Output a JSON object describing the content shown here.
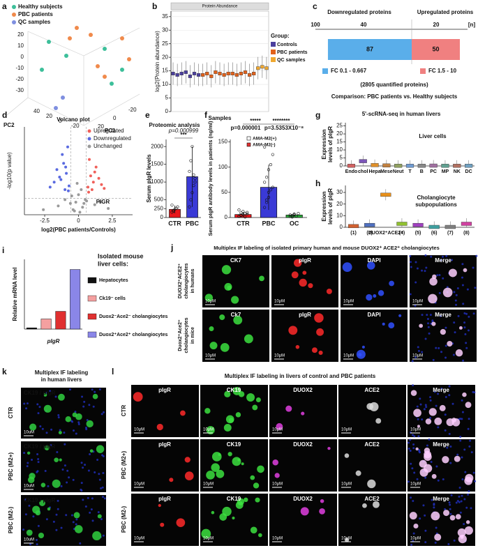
{
  "panels": {
    "a": {
      "letter": "a",
      "legend": [
        "Healthy subjects",
        "PBC patients",
        "QC samples"
      ],
      "colors": [
        "#3dbf9a",
        "#f08a4b",
        "#7f8fe0"
      ],
      "axis_labels": [
        "PC1",
        "PC2"
      ],
      "z_ticks": [
        "20",
        "10",
        "0",
        "-10",
        "-20",
        "-30"
      ],
      "pc1_ticks": [
        "20",
        "0",
        "-20"
      ],
      "pc2_ticks": [
        "40",
        "20",
        "0",
        "-20"
      ]
    },
    "j": {
      "letter": "j",
      "title": "Multiplex IF labeling of isolated primary human and mouse DUOX2⁺ ACE2⁺ cholangiocytes",
      "rows": [
        [
          "DUOX2⁺ACE2⁺",
          "cholangiocytes",
          "in humans"
        ],
        [
          "Duox2⁺Ace2⁺",
          "cholangiocytes",
          "in mice"
        ]
      ],
      "columns": [
        [
          "CK7",
          "pIgR",
          "DAPI",
          "Merge"
        ],
        [
          "Ck7",
          "pIgR",
          "DAPI",
          "Merge"
        ]
      ],
      "scale": "10μM"
    },
    "k": {
      "letter": "k",
      "title": [
        "Multiplex IF labeling",
        "in human livers"
      ],
      "rows": [
        "CTR",
        "PBC (M2+)",
        "PBC (M2-)"
      ],
      "stain": [
        "CK19",
        "/ pIgR"
      ],
      "scale": "10uM"
    },
    "l": {
      "letter": "l",
      "title": "Multiplex IF labeling in livers of control and PBC patients",
      "rows": [
        "CTR",
        "PBC (M2+)",
        "PBC (M2-)"
      ],
      "columns": [
        "pIgR",
        "CK19",
        "DUOX2",
        "ACE2",
        "Merge"
      ],
      "scale": "10μM"
    }
  },
  "chart_data": [
    {
      "panel": "b",
      "type": "box",
      "title": "Protein Abundance",
      "ylabel": "log2(Protein abundance)",
      "xlabel": "Samples",
      "legend_title": "Group:",
      "series": [
        {
          "name": "Controls",
          "color": "#4b3f9e",
          "values": [
            14,
            13.5,
            14,
            14.5,
            13,
            14,
            13.5
          ]
        },
        {
          "name": "PBC patients",
          "color": "#e2621b",
          "values": [
            13.5,
            14,
            13,
            14.5,
            14,
            13.5,
            14,
            14,
            13.5,
            14,
            14.5,
            13.5,
            14
          ]
        },
        {
          "name": "QC samples",
          "color": "#f0a830",
          "values": [
            16,
            16.5,
            16
          ]
        }
      ],
      "ylim": [
        0,
        37
      ],
      "yticks": [
        0,
        5,
        10,
        15,
        20,
        25,
        30,
        35
      ]
    },
    {
      "panel": "c",
      "type": "diverging_bar",
      "header": [
        "Downregulated proteins",
        "Upregulated proteins"
      ],
      "tick_labels": [
        "100",
        "40",
        "20",
        "[n]"
      ],
      "series": [
        {
          "name": "FC 0.1 - 0.667",
          "color": "#5aaeea",
          "values": [
            87
          ]
        },
        {
          "name": "FC 1.5 - 10",
          "color": "#f08080",
          "values": [
            50
          ]
        }
      ],
      "xlim": [
        0,
        100
      ],
      "notes": [
        "(2805 quantified proteins)",
        "Comparison: PBC patients vs. Healthy subjects"
      ]
    },
    {
      "panel": "d",
      "type": "scatter",
      "title": "Volcano plot",
      "xlabel": "log2(PBC patients/Controls)",
      "ylabel": "-log10(p value)",
      "annotation": "PIGR",
      "xlim": [
        -4,
        4
      ],
      "ylim": [
        0,
        7
      ],
      "xticks": [
        -2.5,
        0,
        2.5
      ],
      "series": [
        {
          "name": "Upregulated",
          "color": "#f0605a",
          "x": [
            0.7,
            0.9,
            1.1,
            1.3,
            0.8,
            1.5,
            1.0,
            1.7,
            1.2,
            0.75,
            1.9
          ],
          "y": [
            2.2,
            3.1,
            2.6,
            3.8,
            4.4,
            2.9,
            2.0,
            2.4,
            3.4,
            1.8,
            2.1
          ]
        },
        {
          "name": "Downregulated",
          "color": "#5a6ae0",
          "x": [
            -0.7,
            -0.9,
            -1.1,
            -1.3,
            -0.8,
            -1.6,
            -1.0,
            -1.8,
            -1.2,
            -0.75,
            -2.1,
            -1.4,
            -0.95
          ],
          "y": [
            2.3,
            3.3,
            4.1,
            2.8,
            5.4,
            3.6,
            2.0,
            2.6,
            4.8,
            1.9,
            2.2,
            3.0,
            3.8
          ]
        },
        {
          "name": "Unchanged",
          "color": "#9a9a9a",
          "x": [
            -0.4,
            0.3,
            -0.2,
            0.1,
            0.5,
            -0.5,
            0.2,
            -0.1,
            0.4,
            -0.3,
            1.2,
            -1.5,
            2.2,
            -2.6,
            0.6,
            -0.6,
            0.0,
            1.6,
            -1.0
          ],
          "y": [
            0.4,
            0.6,
            1.0,
            0.2,
            1.2,
            1.5,
            2.0,
            2.5,
            0.9,
            0.3,
            0.8,
            0.7,
            0.5,
            0.4,
            1.1,
            0.9,
            1.6,
            1.0,
            1.2
          ]
        }
      ]
    },
    {
      "panel": "e",
      "type": "bar_points",
      "title": "Proteomic analysis",
      "ylabel": "Serum pIgR levels",
      "categories": [
        "CTR",
        "PBC"
      ],
      "values": [
        230,
        1150
      ],
      "errors": [
        110,
        850
      ],
      "colors": [
        "#e8161b",
        "#3a3ad6"
      ],
      "points": [
        [
          150,
          180,
          230,
          260,
          300,
          350,
          200
        ],
        [
          300,
          500,
          700,
          900,
          1100,
          1300,
          1600,
          2000,
          1200,
          1000
        ]
      ],
      "ylim": [
        0,
        2200
      ],
      "yticks": [
        0,
        250,
        500,
        1000,
        1500,
        2000
      ],
      "annotations": [
        "***",
        "p=0.000999"
      ]
    },
    {
      "panel": "f",
      "type": "bar_points",
      "ylabel": "Serum pIgR antibody levels in patients (ng/ml)",
      "categories": [
        "CTR",
        "PBC",
        "OC"
      ],
      "values": [
        6,
        60,
        5
      ],
      "errors": [
        5,
        45,
        3
      ],
      "colors": [
        "#e8161b",
        "#3a3ad6",
        "#2aaa3a"
      ],
      "points": [
        [
          2,
          4,
          6,
          8,
          10,
          3,
          5,
          12,
          1,
          7,
          15,
          9
        ],
        [
          20,
          30,
          40,
          55,
          60,
          70,
          80,
          95,
          105,
          125,
          140,
          35,
          50
        ],
        [
          2,
          4,
          6,
          3,
          8,
          5,
          1,
          7
        ]
      ],
      "ylim": [
        0,
        155
      ],
      "yticks": [
        0,
        50,
        100,
        150
      ],
      "annotations": [
        "*****",
        "********",
        "p=0.000001",
        "p=3.5353X10⁻⁸"
      ],
      "legend": [
        "AMA-M2(+)",
        "AMA-M2(-)"
      ]
    },
    {
      "panel": "g",
      "type": "box",
      "title": "5'-scRNA-seq in human livers",
      "subtitle": "Liver cells",
      "ylabel": [
        "Expression",
        "levels of pIgR"
      ],
      "categories": [
        "Endo",
        "chol",
        "Hepa",
        "Mese",
        "Neut",
        "T",
        "B",
        "PC",
        "MP",
        "NK",
        "DC"
      ],
      "values": [
        0.1,
        3,
        0.5,
        0.3,
        0.1,
        0.1,
        0.1,
        0.2,
        0.1,
        0.1,
        0.1
      ],
      "colors": [
        "#d06060",
        "#7b55b8",
        "#e0902a",
        "#c08040",
        "#90a060",
        "#6f9ad0",
        "#888888",
        "#a070a0",
        "#60a090",
        "#b07060",
        "#70a0c0"
      ],
      "ylim": [
        0,
        27
      ],
      "yticks": [
        0,
        5,
        10,
        15,
        20,
        25
      ]
    },
    {
      "panel": "h",
      "type": "box",
      "subtitle": [
        "Cholangiocyte",
        "subpopulations"
      ],
      "ylabel": [
        "Expression",
        "levels of pIgR"
      ],
      "categories": [
        "(1)",
        "(2)",
        "DUOX2⁺ACE2⁺",
        "(4)",
        "(5)",
        "(6)",
        "(7)",
        "(8)"
      ],
      "values": [
        1,
        2,
        28,
        3,
        2,
        0.3,
        0.3,
        3
      ],
      "colors": [
        "#d06030",
        "#5070c0",
        "#e8901a",
        "#90c030",
        "#a040c0",
        "#40a0a0",
        "#808080",
        "#d040a0"
      ],
      "ylim": [
        0,
        36
      ],
      "yticks": [
        0,
        10,
        20,
        30
      ]
    },
    {
      "panel": "i",
      "type": "bar",
      "ylabel": "Relative mRNA level",
      "xlabel": "pIgR",
      "legend_title": [
        "Isolated mouse",
        "liver cells:"
      ],
      "categories": [
        "Hepatocytes",
        "Ck19⁻ cells",
        "Duox2⁻Ace2⁻ cholangiocytes",
        "Duox2⁺Ace2⁺ cholangiocytes"
      ],
      "values": [
        1,
        8,
        14,
        47
      ],
      "colors": [
        "#111111",
        "#f4a0a0",
        "#e03030",
        "#8a86e8"
      ],
      "ylim": [
        0,
        55
      ]
    }
  ]
}
